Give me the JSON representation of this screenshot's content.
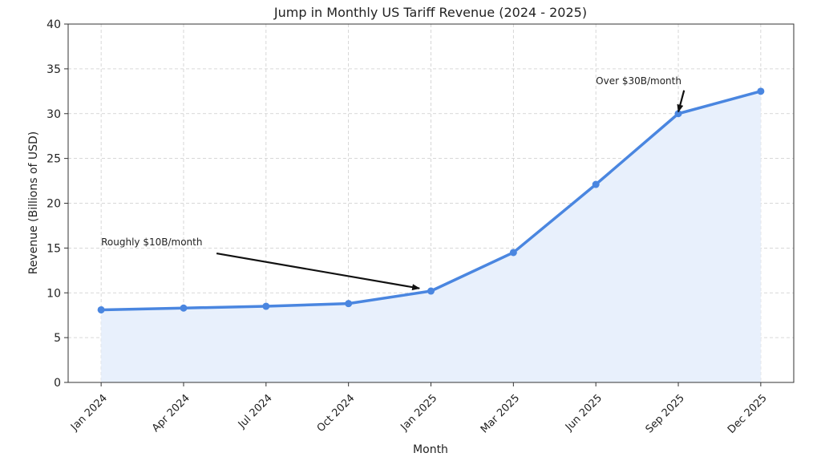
{
  "chart_data": {
    "type": "line",
    "title": "Jump in Monthly US Tariff Revenue (2024 - 2025)",
    "xlabel": "Month",
    "ylabel": "Revenue (Billions of USD)",
    "categories": [
      "Jan 2024",
      "Apr 2024",
      "Jul 2024",
      "Oct 2024",
      "Jan 2025",
      "Mar 2025",
      "Jun 2025",
      "Sep 2025",
      "Dec 2025"
    ],
    "values": [
      8.1,
      8.3,
      8.5,
      8.8,
      10.2,
      14.5,
      22.1,
      30.0,
      32.5
    ],
    "ylim": [
      0,
      40
    ],
    "yticks": [
      0,
      5,
      10,
      15,
      20,
      25,
      30,
      35,
      40
    ],
    "grid": true,
    "fill_under": true,
    "colors": {
      "line": "#4a86e0",
      "fill": "#e8f0fc",
      "grid": "#cccccc",
      "arrow": "#111111"
    },
    "annotations": [
      {
        "text": "Roughly $10B/month",
        "text_xy": [
          0,
          15.3
        ],
        "arrow_from": [
          1.4,
          14.4
        ],
        "arrow_to": [
          3.86,
          10.5
        ]
      },
      {
        "text": "Over $30B/month",
        "text_xy": [
          6,
          33.3
        ],
        "arrow_from": [
          7.07,
          32.6
        ],
        "arrow_to": [
          7.0,
          30.2
        ]
      }
    ]
  }
}
